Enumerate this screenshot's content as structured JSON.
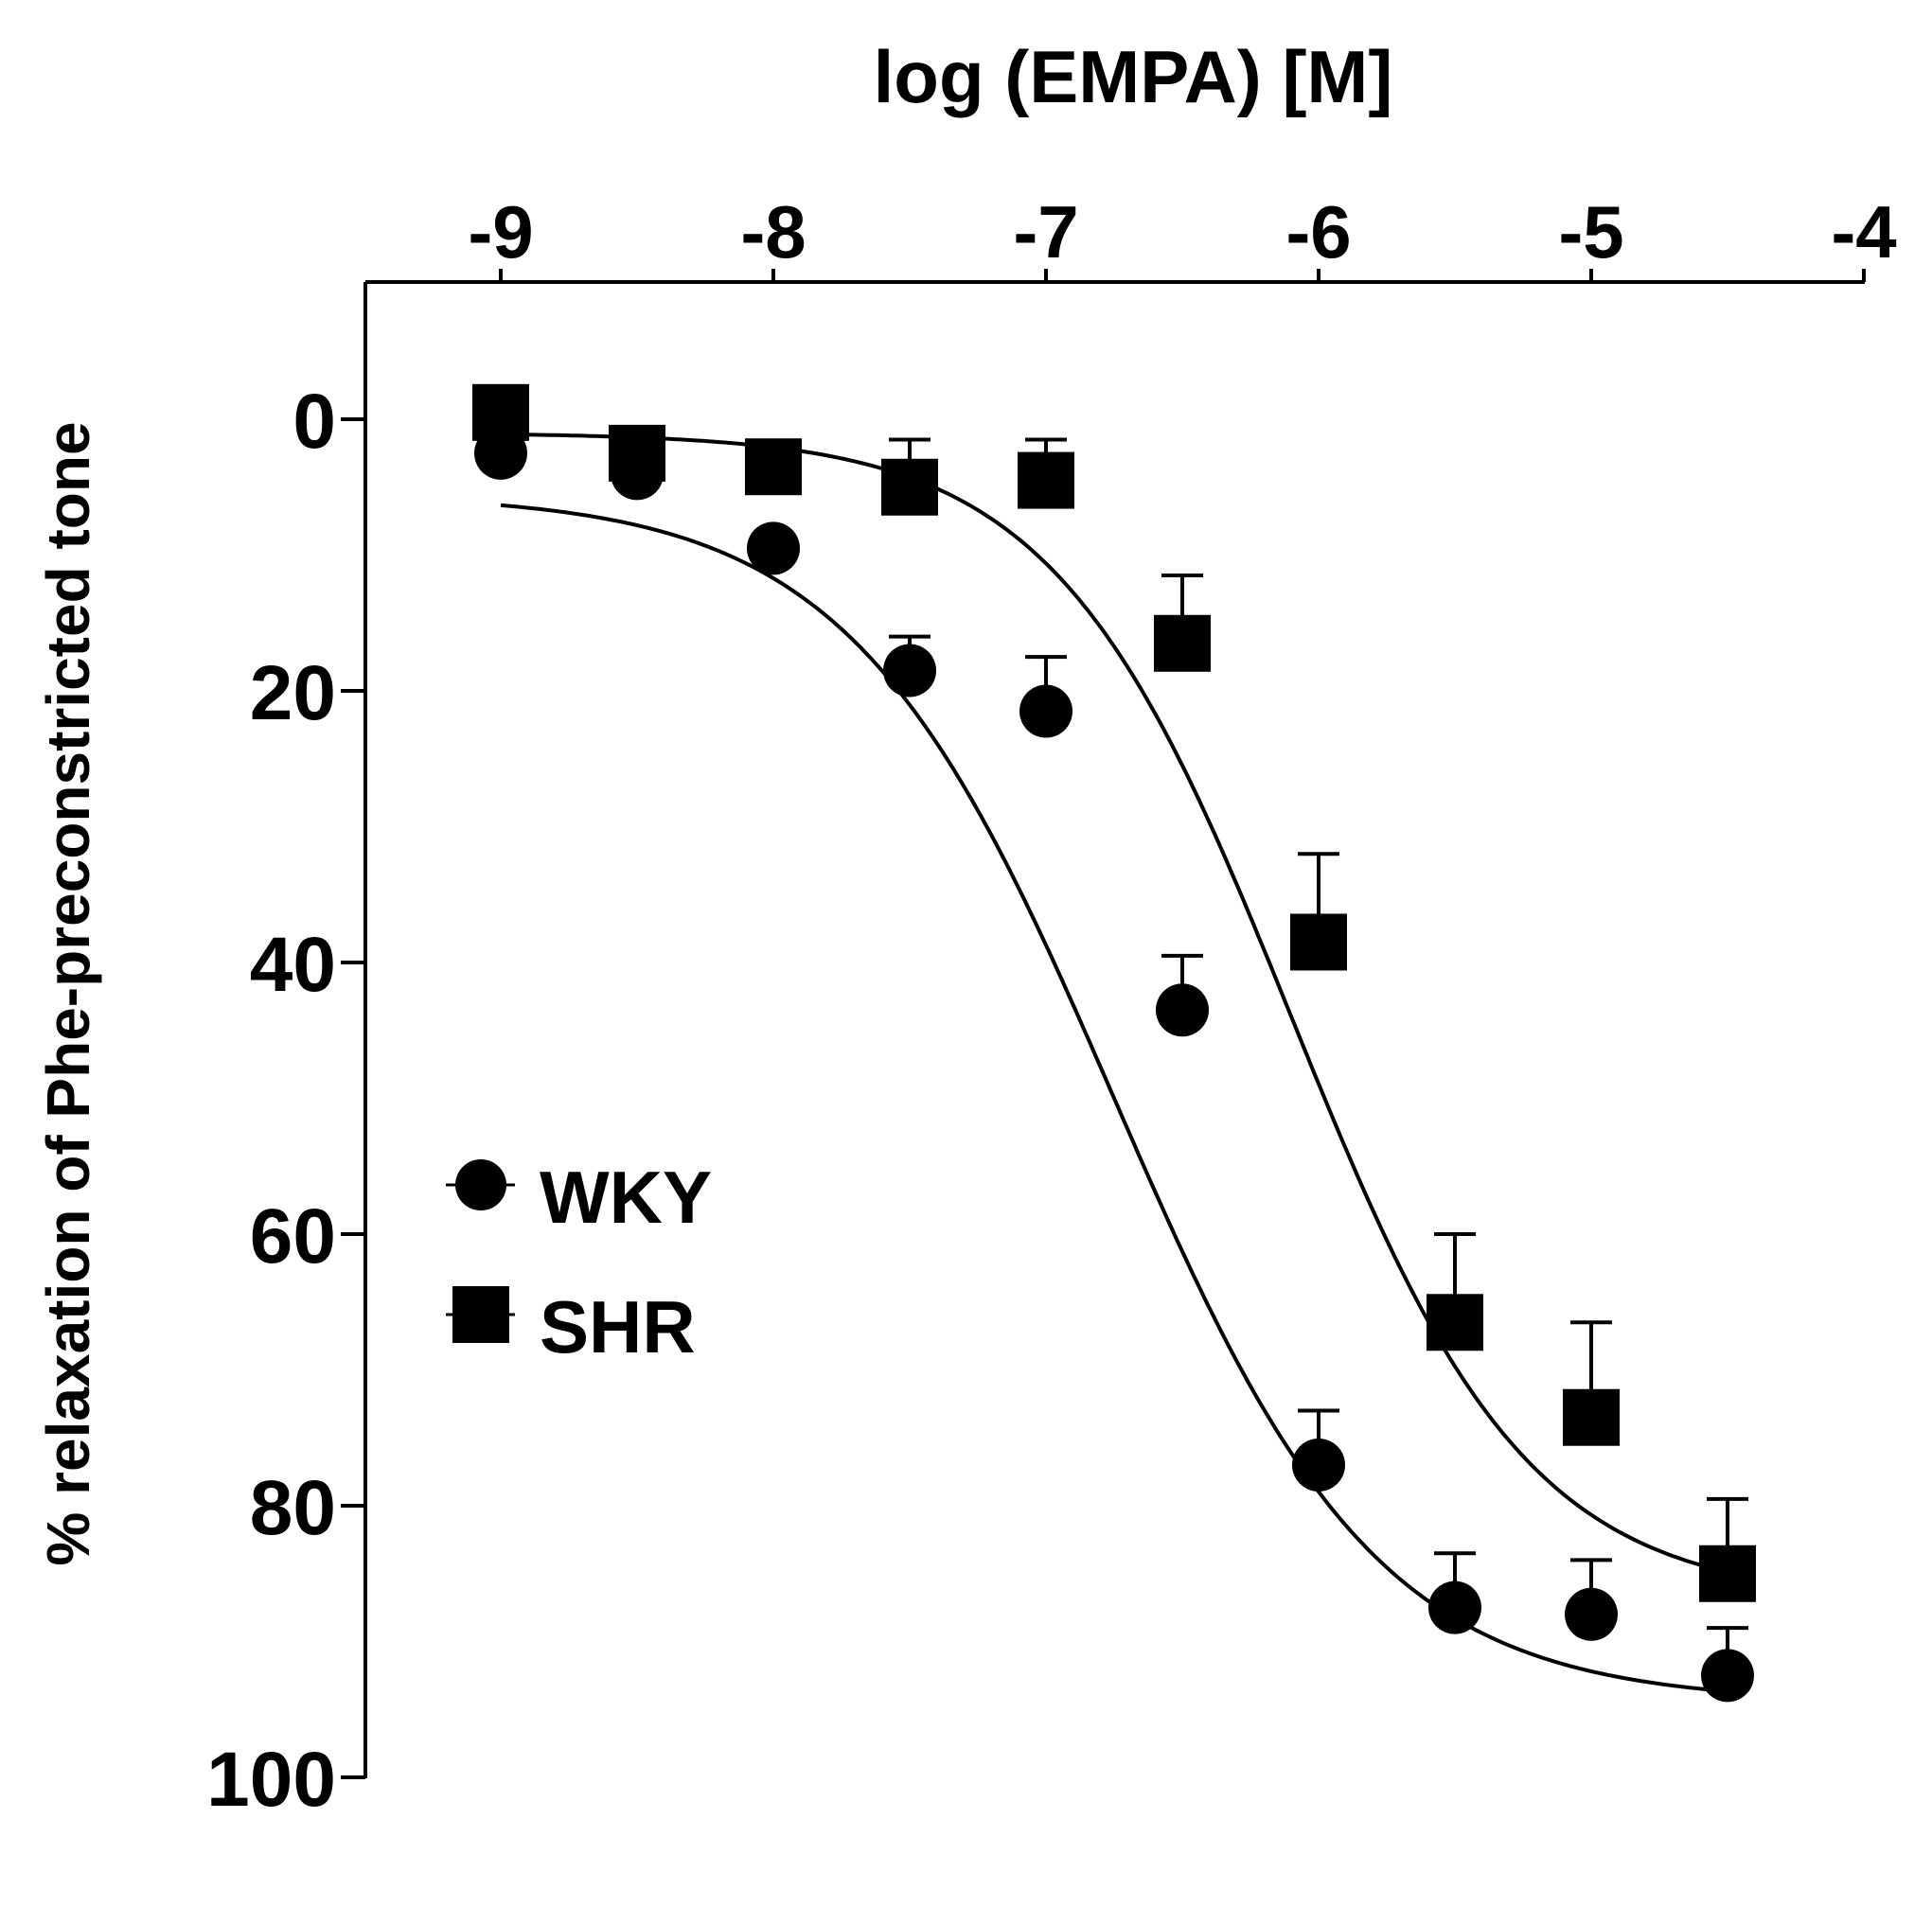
{
  "chart_data": {
    "type": "scatter",
    "title": "",
    "xlabel": "log (EMPA) [M]",
    "ylabel": "% relaxation of Phe-preconstricted tone",
    "xlim": [
      -9.5,
      -4
    ],
    "ylim": [
      -10,
      100
    ],
    "y_inverted": true,
    "x_axis_position": "top",
    "x_ticks": [
      -9,
      -8,
      -7,
      -6,
      -5,
      -4
    ],
    "x_tick_labels": [
      "-9",
      "-8",
      "-7",
      "-6",
      "-5",
      "-4"
    ],
    "y_ticks": [
      0,
      20,
      40,
      60,
      80,
      100
    ],
    "y_tick_labels": [
      "0",
      "20",
      "40",
      "60",
      "80",
      "100"
    ],
    "legend_position": "left-middle",
    "series": [
      {
        "name": "WKY",
        "marker": "circle",
        "x": [
          -9.0,
          -8.5,
          -8.0,
          -7.5,
          -7.0,
          -6.5,
          -6.0,
          -5.5,
          -5.0,
          -4.5
        ],
        "y": [
          2.5,
          4.0,
          9.5,
          18.5,
          21.5,
          43.5,
          77.0,
          87.5,
          88.0,
          92.5
        ],
        "error": [
          0,
          0,
          0,
          2.5,
          4.0,
          4.0,
          4.0,
          4.0,
          4.0,
          3.5
        ],
        "fit": {
          "bottom": 5.5,
          "top": 94.5,
          "log_ec50": -6.75,
          "hill_slope": 0.9
        }
      },
      {
        "name": "SHR",
        "marker": "square",
        "x": [
          -9.0,
          -8.5,
          -8.0,
          -7.5,
          -7.0,
          -6.5,
          -6.0,
          -5.5,
          -5.0,
          -4.5
        ],
        "y": [
          -0.5,
          2.5,
          3.5,
          5.0,
          4.5,
          16.5,
          38.5,
          66.5,
          73.5,
          85.0
        ],
        "error": [
          0,
          0,
          0,
          3.5,
          3.0,
          5.0,
          6.5,
          6.5,
          7.0,
          5.5
        ],
        "fit": {
          "bottom": 1.0,
          "top": 87.0,
          "log_ec50": -6.1,
          "hill_slope": 1.0
        }
      }
    ]
  }
}
